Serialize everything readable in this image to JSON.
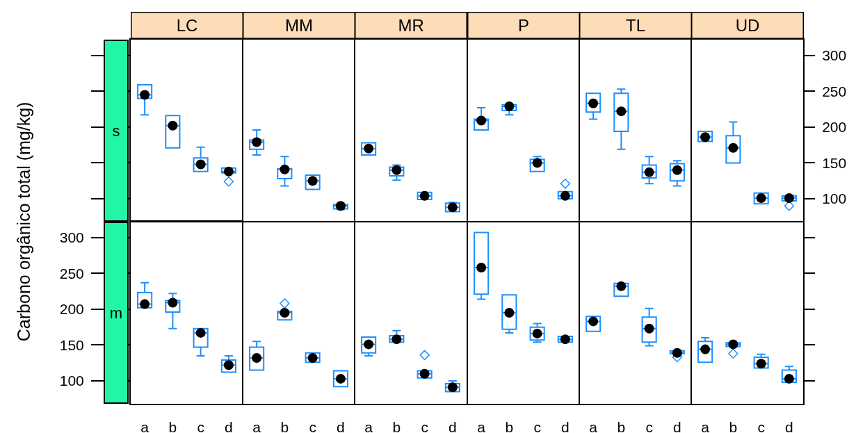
{
  "chart_data": [
    {
      "type": "box",
      "title": "LC",
      "ylabel": "s",
      "categories": [
        "a",
        "b",
        "c",
        "d"
      ],
      "ylim": [
        68,
        322
      ],
      "yticks": [
        100,
        150,
        200,
        250,
        300
      ],
      "tick_labels": false,
      "series": [
        {
          "color": "#1e8fff",
          "boxes": [
            {
              "low": 217,
              "q1": 240,
              "median": 245,
              "q3": 259,
              "high": 259
            },
            {
              "low": 171,
              "q1": 171,
              "median": 202,
              "q3": 216,
              "high": 216
            },
            {
              "low": 138,
              "q1": 138,
              "median": 148,
              "q3": 157,
              "high": 172
            },
            {
              "low": 136,
              "q1": 136,
              "median": 138,
              "q3": 143,
              "high": 143,
              "outliers": [
                124
              ]
            }
          ]
        },
        {
          "type": "scatter",
          "marker": "circle",
          "color": "#000000",
          "x": [
            "a",
            "b",
            "c",
            "d"
          ],
          "values": [
            245,
            202,
            148,
            138
          ]
        }
      ]
    },
    {
      "type": "box",
      "title": "MM",
      "categories": [
        "a",
        "b",
        "c",
        "d"
      ],
      "ylim": [
        68,
        322
      ],
      "yticks": [
        100,
        150,
        200,
        250,
        300
      ],
      "tick_labels": false,
      "series": [
        {
          "color": "#1e8fff",
          "boxes": [
            {
              "low": 161,
              "q1": 169,
              "median": 179,
              "q3": 182,
              "high": 196
            },
            {
              "low": 118,
              "q1": 128,
              "median": 141,
              "q3": 142,
              "high": 159
            },
            {
              "low": 113,
              "q1": 113,
              "median": 125,
              "q3": 133,
              "high": 133
            },
            {
              "low": 85,
              "q1": 86,
              "median": 90,
              "q3": 92,
              "high": 93
            }
          ]
        },
        {
          "type": "scatter",
          "marker": "circle",
          "color": "#000000",
          "x": [
            "a",
            "b",
            "c",
            "d"
          ],
          "values": [
            179,
            141,
            125,
            90
          ]
        }
      ]
    },
    {
      "type": "box",
      "title": "MR",
      "categories": [
        "a",
        "b",
        "c",
        "d"
      ],
      "ylim": [
        68,
        322
      ],
      "yticks": [
        100,
        150,
        200,
        250,
        300
      ],
      "tick_labels": false,
      "series": [
        {
          "color": "#1e8fff",
          "boxes": [
            {
              "low": 161,
              "q1": 161,
              "median": 170,
              "q3": 178,
              "high": 178
            },
            {
              "low": 126,
              "q1": 132,
              "median": 140,
              "q3": 144,
              "high": 147
            },
            {
              "low": 99,
              "q1": 99,
              "median": 104,
              "q3": 109,
              "high": 109
            },
            {
              "low": 82,
              "q1": 82,
              "median": 88,
              "q3": 94,
              "high": 95
            }
          ]
        },
        {
          "type": "scatter",
          "marker": "circle",
          "color": "#000000",
          "x": [
            "a",
            "b",
            "c",
            "d"
          ],
          "values": [
            170,
            140,
            104,
            88
          ]
        }
      ]
    },
    {
      "type": "box",
      "title": "P",
      "categories": [
        "a",
        "b",
        "c",
        "d"
      ],
      "ylim": [
        68,
        322
      ],
      "yticks": [
        100,
        150,
        200,
        250,
        300
      ],
      "tick_labels": false,
      "series": [
        {
          "color": "#1e8fff",
          "boxes": [
            {
              "low": 196,
              "q1": 196,
              "median": 209,
              "q3": 211,
              "high": 227
            },
            {
              "low": 217,
              "q1": 223,
              "median": 229,
              "q3": 231,
              "high": 231
            },
            {
              "low": 138,
              "q1": 138,
              "median": 150,
              "q3": 155,
              "high": 159
            },
            {
              "low": 100,
              "q1": 100,
              "median": 104,
              "q3": 110,
              "high": 110,
              "outliers": [
                121
              ]
            }
          ]
        },
        {
          "type": "scatter",
          "marker": "circle",
          "color": "#000000",
          "x": [
            "a",
            "b",
            "c",
            "d"
          ],
          "values": [
            209,
            229,
            150,
            104
          ]
        }
      ]
    },
    {
      "type": "box",
      "title": "TL",
      "categories": [
        "a",
        "b",
        "c",
        "d"
      ],
      "ylim": [
        68,
        322
      ],
      "yticks": [
        100,
        150,
        200,
        250,
        300
      ],
      "tick_labels": false,
      "series": [
        {
          "color": "#1e8fff",
          "boxes": [
            {
              "low": 211,
              "q1": 221,
              "median": 233,
              "q3": 247,
              "high": 247
            },
            {
              "low": 169,
              "q1": 194,
              "median": 222,
              "q3": 247,
              "high": 253
            },
            {
              "low": 121,
              "q1": 129,
              "median": 137,
              "q3": 147,
              "high": 159
            },
            {
              "low": 118,
              "q1": 125,
              "median": 140,
              "q3": 149,
              "high": 153
            }
          ]
        },
        {
          "type": "scatter",
          "marker": "circle",
          "color": "#000000",
          "x": [
            "a",
            "b",
            "c",
            "d"
          ],
          "values": [
            233,
            222,
            137,
            140
          ]
        }
      ]
    },
    {
      "type": "box",
      "title": "UD",
      "categories": [
        "a",
        "b",
        "c",
        "d"
      ],
      "ylim": [
        68,
        322
      ],
      "yticks": [
        100,
        150,
        200,
        250,
        300
      ],
      "tick_labels": "y",
      "series": [
        {
          "color": "#1e8fff",
          "boxes": [
            {
              "low": 180,
              "q1": 180,
              "median": 186,
              "q3": 194,
              "high": 194
            },
            {
              "low": 150,
              "q1": 150,
              "median": 171,
              "q3": 188,
              "high": 207
            },
            {
              "low": 93,
              "q1": 93,
              "median": 101,
              "q3": 108,
              "high": 108
            },
            {
              "low": 97,
              "q1": 97,
              "median": 101,
              "q3": 104,
              "high": 104,
              "outliers": [
                90
              ]
            }
          ]
        },
        {
          "type": "scatter",
          "marker": "circle",
          "color": "#000000",
          "x": [
            "a",
            "b",
            "c",
            "d"
          ],
          "values": [
            186,
            171,
            101,
            101
          ]
        }
      ]
    },
    {
      "type": "box",
      "ylabel": "m",
      "annotations": [
        "Carbono orgânico total (mg/kg)"
      ],
      "categories": [
        "a",
        "b",
        "c",
        "d"
      ],
      "ylim": [
        68,
        322
      ],
      "yticks": [
        100,
        150,
        200,
        250,
        300
      ],
      "series": [
        {
          "color": "#1e8fff",
          "boxes": [
            {
              "low": 202,
              "q1": 202,
              "median": 207,
              "q3": 223,
              "high": 237
            },
            {
              "low": 173,
              "q1": 196,
              "median": 209,
              "q3": 212,
              "high": 222
            },
            {
              "low": 135,
              "q1": 147,
              "median": 167,
              "q3": 173,
              "high": 173
            },
            {
              "low": 112,
              "q1": 112,
              "median": 122,
              "q3": 129,
              "high": 135
            }
          ]
        },
        {
          "type": "scatter",
          "marker": "circle",
          "color": "#000000",
          "x": [
            "a",
            "b",
            "c",
            "d"
          ],
          "values": [
            207,
            209,
            167,
            122
          ]
        }
      ]
    },
    {
      "type": "box",
      "categories": [
        "a",
        "b",
        "c",
        "d"
      ],
      "ylim": [
        68,
        322
      ],
      "yticks": [
        100,
        150,
        200,
        250,
        300
      ],
      "tick_labels": "x",
      "series": [
        {
          "color": "#1e8fff",
          "boxes": [
            {
              "low": 115,
              "q1": 115,
              "median": 132,
              "q3": 147,
              "high": 155
            },
            {
              "low": 185,
              "q1": 185,
              "median": 195,
              "q3": 197,
              "high": 197,
              "outliers": [
                208
              ]
            },
            {
              "low": 126,
              "q1": 126,
              "median": 132,
              "q3": 139,
              "high": 139
            },
            {
              "low": 92,
              "q1": 92,
              "median": 103,
              "q3": 114,
              "high": 114
            }
          ]
        },
        {
          "type": "scatter",
          "marker": "circle",
          "color": "#000000",
          "x": [
            "a",
            "b",
            "c",
            "d"
          ],
          "values": [
            132,
            195,
            132,
            103
          ]
        }
      ]
    },
    {
      "type": "box",
      "categories": [
        "a",
        "b",
        "c",
        "d"
      ],
      "ylim": [
        68,
        322
      ],
      "yticks": [
        100,
        150,
        200,
        250,
        300
      ],
      "tick_labels": "x",
      "series": [
        {
          "color": "#1e8fff",
          "boxes": [
            {
              "low": 135,
              "q1": 139,
              "median": 151,
              "q3": 161,
              "high": 161
            },
            {
              "low": 154,
              "q1": 154,
              "median": 158,
              "q3": 163,
              "high": 170
            },
            {
              "low": 104,
              "q1": 104,
              "median": 110,
              "q3": 114,
              "high": 114,
              "outliers": [
                136
              ]
            },
            {
              "low": 85,
              "q1": 85,
              "median": 91,
              "q3": 96,
              "high": 100
            }
          ]
        },
        {
          "type": "scatter",
          "marker": "circle",
          "color": "#000000",
          "x": [
            "a",
            "b",
            "c",
            "d"
          ],
          "values": [
            151,
            158,
            110,
            91
          ]
        }
      ]
    },
    {
      "type": "box",
      "categories": [
        "a",
        "b",
        "c",
        "d"
      ],
      "ylim": [
        68,
        322
      ],
      "yticks": [
        100,
        150,
        200,
        250,
        300
      ],
      "tick_labels": "x",
      "series": [
        {
          "color": "#1e8fff",
          "boxes": [
            {
              "low": 214,
              "q1": 221,
              "median": 258,
              "q3": 307,
              "high": 307
            },
            {
              "low": 167,
              "q1": 172,
              "median": 195,
              "q3": 220,
              "high": 220
            },
            {
              "low": 154,
              "q1": 157,
              "median": 166,
              "q3": 175,
              "high": 180
            },
            {
              "low": 154,
              "q1": 154,
              "median": 158,
              "q3": 162,
              "high": 162
            }
          ]
        },
        {
          "type": "scatter",
          "marker": "circle",
          "color": "#000000",
          "x": [
            "a",
            "b",
            "c",
            "d"
          ],
          "values": [
            258,
            195,
            166,
            158
          ]
        }
      ]
    },
    {
      "type": "box",
      "categories": [
        "a",
        "b",
        "c",
        "d"
      ],
      "ylim": [
        68,
        322
      ],
      "yticks": [
        100,
        150,
        200,
        250,
        300
      ],
      "tick_labels": "x",
      "series": [
        {
          "color": "#1e8fff",
          "boxes": [
            {
              "low": 169,
              "q1": 169,
              "median": 183,
              "q3": 190,
              "high": 190
            },
            {
              "low": 218,
              "q1": 218,
              "median": 232,
              "q3": 236,
              "high": 236
            },
            {
              "low": 149,
              "q1": 154,
              "median": 173,
              "q3": 189,
              "high": 201
            },
            {
              "low": 137,
              "q1": 138,
              "median": 139,
              "q3": 142,
              "high": 142,
              "outliers": [
                133
              ]
            }
          ]
        },
        {
          "type": "scatter",
          "marker": "circle",
          "color": "#000000",
          "x": [
            "a",
            "b",
            "c",
            "d"
          ],
          "values": [
            183,
            232,
            173,
            139
          ]
        }
      ]
    },
    {
      "type": "box",
      "categories": [
        "a",
        "b",
        "c",
        "d"
      ],
      "ylim": [
        68,
        322
      ],
      "yticks": [
        100,
        150,
        200,
        250,
        300
      ],
      "tick_labels": "x",
      "series": [
        {
          "color": "#1e8fff",
          "boxes": [
            {
              "low": 126,
              "q1": 126,
              "median": 144,
              "q3": 155,
              "high": 160
            },
            {
              "low": 148,
              "q1": 148,
              "median": 151,
              "q3": 153,
              "high": 153,
              "outliers": [
                138
              ]
            },
            {
              "low": 118,
              "q1": 118,
              "median": 124,
              "q3": 133,
              "high": 137
            },
            {
              "low": 98,
              "q1": 98,
              "median": 103,
              "q3": 115,
              "high": 120
            }
          ]
        },
        {
          "type": "scatter",
          "marker": "circle",
          "color": "#000000",
          "x": [
            "a",
            "b",
            "c",
            "d"
          ],
          "values": [
            144,
            151,
            124,
            103
          ]
        }
      ]
    }
  ]
}
